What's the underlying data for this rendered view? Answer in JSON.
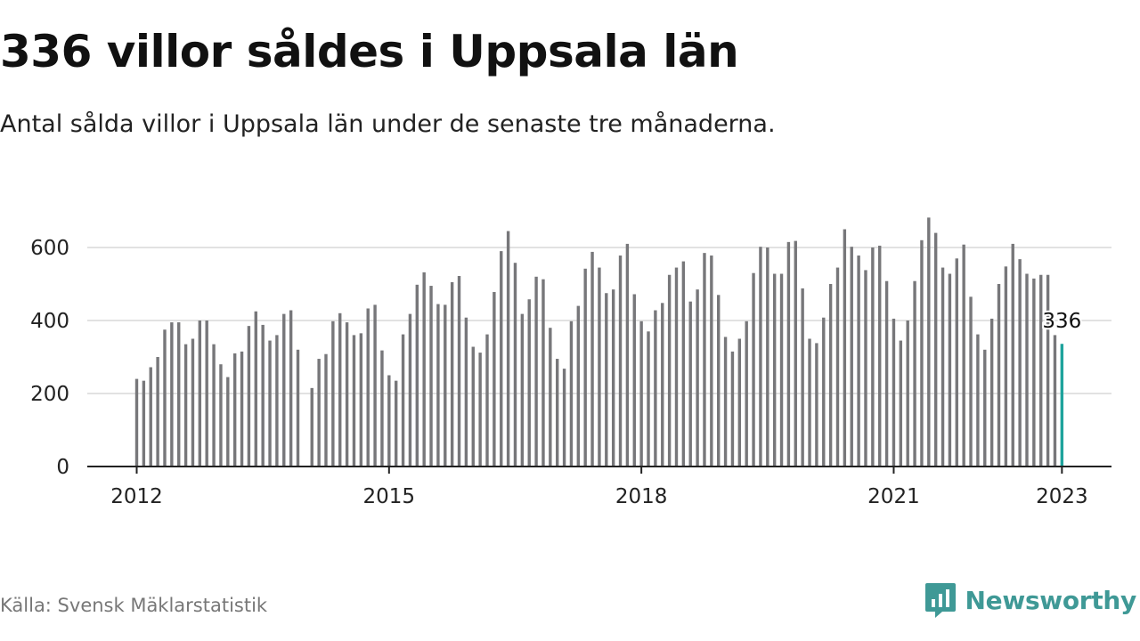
{
  "title": "336 villor såldes i Uppsala län",
  "subtitle": "Antal sålda villor i Uppsala län under de senaste tre månaderna.",
  "source": "Källa: Svensk Mäklarstatistik",
  "brand": {
    "name": "Newsworthy",
    "icon": "newsworthy-logo-icon",
    "color": "#3f9996"
  },
  "chart_data": {
    "type": "bar",
    "title": "336 villor såldes i Uppsala län",
    "xlabel": "",
    "ylabel": "",
    "x_start": "2012-01",
    "x_ticks": [
      2012,
      2015,
      2018,
      2021,
      2023
    ],
    "y_ticks": [
      0,
      200,
      400,
      600
    ],
    "ylim": [
      0,
      700
    ],
    "grid": true,
    "bar_color": "#77777a",
    "highlight_color": "#1fa39d",
    "annotation": {
      "label": "336"
    },
    "values": [
      240,
      235,
      272,
      300,
      375,
      395,
      395,
      335,
      350,
      400,
      400,
      335,
      280,
      245,
      310,
      315,
      385,
      425,
      388,
      345,
      360,
      418,
      428,
      320,
      null,
      215,
      295,
      308,
      398,
      420,
      395,
      360,
      365,
      433,
      443,
      318,
      250,
      235,
      362,
      418,
      498,
      532,
      495,
      445,
      443,
      505,
      522,
      408,
      328,
      312,
      362,
      478,
      590,
      645,
      558,
      418,
      458,
      520,
      513,
      380,
      295,
      268,
      398,
      440,
      542,
      588,
      545,
      475,
      485,
      578,
      610,
      472,
      398,
      370,
      428,
      448,
      525,
      545,
      562,
      452,
      485,
      585,
      578,
      470,
      355,
      315,
      350,
      398,
      530,
      602,
      600,
      528,
      528,
      615,
      618,
      488,
      350,
      338,
      408,
      500,
      545,
      650,
      602,
      578,
      538,
      600,
      605,
      508,
      405,
      345,
      400,
      508,
      620,
      682,
      640,
      545,
      528,
      570,
      608,
      465,
      362,
      320,
      405,
      500,
      548,
      610,
      568,
      528,
      515,
      525,
      525,
      360,
      336
    ]
  }
}
